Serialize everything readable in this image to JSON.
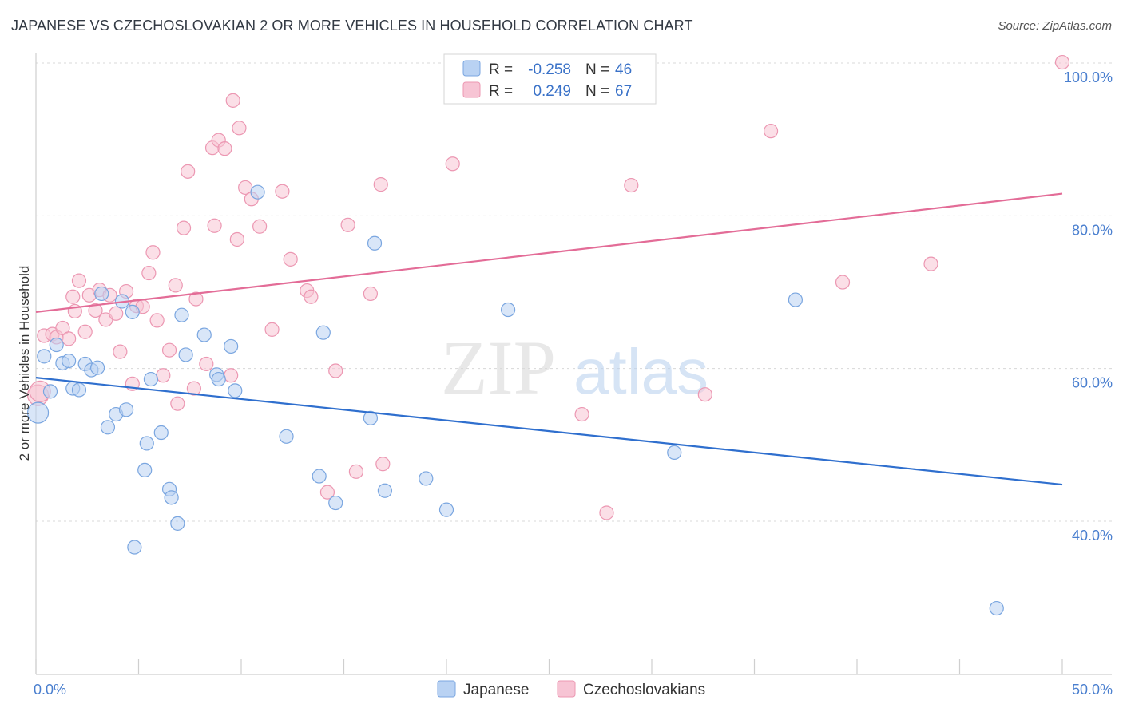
{
  "title": "JAPANESE VS CZECHOSLOVAKIAN 2 OR MORE VEHICLES IN HOUSEHOLD CORRELATION CHART",
  "source": "Source: ZipAtlas.com",
  "watermark": {
    "zip": "ZIP",
    "atlas": "atlas"
  },
  "colors": {
    "japanese_fill": "#b9d2f3",
    "japanese_stroke": "#7aa6e0",
    "japanese_line": "#2f6fce",
    "czech_fill": "#f7c4d4",
    "czech_stroke": "#ec97b2",
    "czech_line": "#e36c97",
    "tick_label": "#4a7fcf",
    "grid": "#d8d8d8"
  },
  "legend": {
    "rows": [
      {
        "r_label": "R =",
        "r_value": "-0.258",
        "n_label": "N =",
        "n_value": "46"
      },
      {
        "r_label": "R =",
        "r_value": "0.249",
        "n_label": "N =",
        "n_value": "67"
      }
    ]
  },
  "bottom_legend": [
    "Japanese",
    "Czechoslovakians"
  ],
  "chart_data": {
    "type": "scatter",
    "title": "JAPANESE VS CZECHOSLOVAKIAN 2 OR MORE VEHICLES IN HOUSEHOLD CORRELATION CHART",
    "xlabel": "",
    "ylabel": "2 or more Vehicles in Household",
    "xlim": [
      0,
      50
    ],
    "ylim": [
      20,
      102
    ],
    "x_tick_labels": [
      "0.0%",
      "50.0%"
    ],
    "y_ticks": [
      40,
      60,
      80,
      100
    ],
    "y_tick_labels": [
      "40.0%",
      "60.0%",
      "80.0%",
      "100.0%"
    ],
    "grid": true,
    "series": [
      {
        "name": "Japanese",
        "R": -0.258,
        "N": 46,
        "trend": {
          "x": [
            0,
            50
          ],
          "y": [
            58.8,
            44.8
          ]
        },
        "points": [
          [
            0.1,
            54.2
          ],
          [
            0.4,
            61.6
          ],
          [
            0.7,
            57.0
          ],
          [
            1.0,
            63.1
          ],
          [
            1.3,
            60.7
          ],
          [
            1.6,
            61.0
          ],
          [
            1.8,
            57.4
          ],
          [
            2.1,
            57.2
          ],
          [
            2.4,
            60.6
          ],
          [
            2.7,
            59.8
          ],
          [
            3.0,
            60.1
          ],
          [
            3.2,
            69.8
          ],
          [
            3.5,
            52.3
          ],
          [
            3.9,
            54.0
          ],
          [
            4.2,
            68.8
          ],
          [
            4.4,
            54.6
          ],
          [
            4.7,
            67.4
          ],
          [
            4.8,
            36.6
          ],
          [
            5.3,
            46.7
          ],
          [
            5.4,
            50.2
          ],
          [
            5.6,
            58.6
          ],
          [
            6.1,
            51.6
          ],
          [
            6.5,
            44.2
          ],
          [
            6.6,
            43.1
          ],
          [
            6.9,
            39.7
          ],
          [
            7.1,
            67.0
          ],
          [
            7.3,
            61.8
          ],
          [
            8.2,
            64.4
          ],
          [
            8.8,
            59.2
          ],
          [
            8.9,
            58.6
          ],
          [
            9.5,
            62.9
          ],
          [
            9.7,
            57.1
          ],
          [
            10.8,
            83.1
          ],
          [
            12.2,
            51.1
          ],
          [
            13.8,
            45.9
          ],
          [
            14.0,
            64.7
          ],
          [
            14.6,
            42.4
          ],
          [
            16.3,
            53.5
          ],
          [
            16.5,
            76.4
          ],
          [
            17.0,
            44.0
          ],
          [
            19.0,
            45.6
          ],
          [
            20.0,
            41.5
          ],
          [
            23.0,
            67.7
          ],
          [
            31.1,
            49.0
          ],
          [
            37.0,
            69.0
          ],
          [
            46.8,
            28.6
          ]
        ]
      },
      {
        "name": "Czechoslovakians",
        "R": 0.249,
        "N": 67,
        "trend": {
          "x": [
            0,
            50
          ],
          "y": [
            67.4,
            82.9
          ]
        },
        "points": [
          [
            0.1,
            56.5
          ],
          [
            0.4,
            64.3
          ],
          [
            0.8,
            64.5
          ],
          [
            1.0,
            64.1
          ],
          [
            1.3,
            65.3
          ],
          [
            1.6,
            63.9
          ],
          [
            1.8,
            69.4
          ],
          [
            1.9,
            67.5
          ],
          [
            2.1,
            71.5
          ],
          [
            2.4,
            64.8
          ],
          [
            2.6,
            69.6
          ],
          [
            2.9,
            67.6
          ],
          [
            3.1,
            70.3
          ],
          [
            3.4,
            66.4
          ],
          [
            3.6,
            69.6
          ],
          [
            3.9,
            67.2
          ],
          [
            4.1,
            62.2
          ],
          [
            4.4,
            70.1
          ],
          [
            4.7,
            58.0
          ],
          [
            4.9,
            68.2
          ],
          [
            5.2,
            68.1
          ],
          [
            5.5,
            72.5
          ],
          [
            5.7,
            75.2
          ],
          [
            5.9,
            66.3
          ],
          [
            6.2,
            59.1
          ],
          [
            6.5,
            62.4
          ],
          [
            6.8,
            70.9
          ],
          [
            6.9,
            55.4
          ],
          [
            7.2,
            78.4
          ],
          [
            7.4,
            85.8
          ],
          [
            7.7,
            57.4
          ],
          [
            7.8,
            69.1
          ],
          [
            8.3,
            60.6
          ],
          [
            8.6,
            88.9
          ],
          [
            8.7,
            78.7
          ],
          [
            8.9,
            89.9
          ],
          [
            9.2,
            88.8
          ],
          [
            9.5,
            59.1
          ],
          [
            9.6,
            95.1
          ],
          [
            9.8,
            76.9
          ],
          [
            9.9,
            91.5
          ],
          [
            10.2,
            83.7
          ],
          [
            10.5,
            82.2
          ],
          [
            10.9,
            78.6
          ],
          [
            11.5,
            65.1
          ],
          [
            12.0,
            83.2
          ],
          [
            12.4,
            74.3
          ],
          [
            13.2,
            70.2
          ],
          [
            13.4,
            69.4
          ],
          [
            14.2,
            43.8
          ],
          [
            14.6,
            59.7
          ],
          [
            15.2,
            78.8
          ],
          [
            15.6,
            46.5
          ],
          [
            16.3,
            69.8
          ],
          [
            16.8,
            84.1
          ],
          [
            16.9,
            47.5
          ],
          [
            20.3,
            86.8
          ],
          [
            23.3,
            100.1
          ],
          [
            26.6,
            54.0
          ],
          [
            27.8,
            41.1
          ],
          [
            29.0,
            84.0
          ],
          [
            32.6,
            56.6
          ],
          [
            35.8,
            91.1
          ],
          [
            39.3,
            71.3
          ],
          [
            43.6,
            73.7
          ],
          [
            50.0,
            100.1
          ],
          [
            0.2,
            57.0
          ]
        ]
      }
    ]
  }
}
